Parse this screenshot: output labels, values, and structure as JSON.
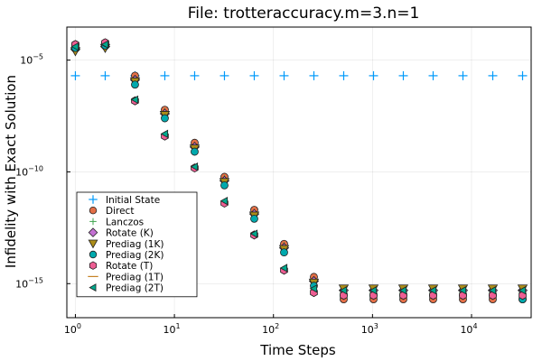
{
  "chart_data": {
    "type": "scatter",
    "title": "File: trotteraccuracy.m=3.n=1",
    "xlabel": "Time Steps",
    "ylabel": "Infidelity with Exact Solution",
    "xscale": "log10",
    "yscale": "log10",
    "xlim": [
      0.82,
      40000
    ],
    "ylim": [
      3e-17,
      0.0003
    ],
    "grid": true,
    "legend_position": "bottom-left",
    "x_ticks": [
      {
        "value": 1,
        "base": "10",
        "exp": "0"
      },
      {
        "value": 10,
        "base": "10",
        "exp": "1"
      },
      {
        "value": 100,
        "base": "10",
        "exp": "2"
      },
      {
        "value": 1000,
        "base": "10",
        "exp": "3"
      },
      {
        "value": 10000,
        "base": "10",
        "exp": "4"
      }
    ],
    "y_ticks": [
      {
        "value": 1e-15,
        "base": "10",
        "exp": "−15"
      },
      {
        "value": 1e-10,
        "base": "10",
        "exp": "−10"
      },
      {
        "value": 1e-05,
        "base": "10",
        "exp": "−5"
      }
    ],
    "x": [
      1,
      2,
      4,
      8,
      16,
      32,
      64,
      128,
      256,
      512,
      1024,
      2048,
      4096,
      8192,
      16384,
      32768
    ],
    "series": [
      {
        "name": "Initial State",
        "marker": "cross",
        "color": "#009AFA",
        "values": [
          2e-06,
          2e-06,
          2e-06,
          2e-06,
          2e-06,
          2e-06,
          2e-06,
          2e-06,
          2e-06,
          2e-06,
          2e-06,
          2e-06,
          2e-06,
          2e-06,
          2e-06,
          2e-06
        ]
      },
      {
        "name": "Direct",
        "marker": "circle",
        "color": "#E36F47",
        "values": [
          5e-05,
          6e-05,
          2e-06,
          6e-08,
          2e-09,
          6e-11,
          2e-12,
          6e-14,
          2e-15,
          2e-16,
          2e-16,
          2e-16,
          2e-16,
          2e-16,
          2e-16,
          2e-16
        ]
      },
      {
        "name": "Lanczos",
        "marker": "plus",
        "color": "#3EA44E",
        "values": [
          4e-05,
          5e-05,
          1.5e-06,
          5e-08,
          1.5e-09,
          5e-11,
          1.5e-12,
          5e-14,
          1.5e-15,
          4e-16,
          4e-16,
          4e-16,
          4e-16,
          4e-16,
          4e-16,
          4e-16
        ]
      },
      {
        "name": "Rotate (K)",
        "marker": "diamond",
        "color": "#C371D2",
        "values": [
          3e-05,
          4e-05,
          1.3e-06,
          4e-08,
          1.3e-09,
          4e-11,
          1.3e-12,
          4e-14,
          1.3e-15,
          5e-16,
          5e-16,
          5e-16,
          5e-16,
          5e-16,
          5e-16,
          5e-16
        ]
      },
      {
        "name": "Prediag (1K)",
        "marker": "triangle-down",
        "color": "#AC8D18",
        "values": [
          2.5e-05,
          3.5e-05,
          1.1e-06,
          3.5e-08,
          1.1e-09,
          3.5e-11,
          1.1e-12,
          3.5e-14,
          1.1e-15,
          6e-16,
          6e-16,
          6e-16,
          6e-16,
          6e-16,
          6e-16,
          6e-16
        ]
      },
      {
        "name": "Prediag (2K)",
        "marker": "circle",
        "color": "#00A9AD",
        "values": [
          3.5e-05,
          4.5e-05,
          8e-07,
          2.5e-08,
          8e-10,
          2.5e-11,
          8e-13,
          2.5e-14,
          8e-16,
          3e-16,
          3e-16,
          3e-16,
          3e-16,
          3e-16,
          3e-16,
          2e-16
        ]
      },
      {
        "name": "Rotate (T)",
        "marker": "hexagon",
        "color": "#ED5E93",
        "values": [
          5e-05,
          6e-05,
          1.5e-07,
          4e-09,
          1.5e-10,
          4e-12,
          1.5e-13,
          4e-15,
          4e-16,
          3e-16,
          3e-16,
          3e-16,
          3e-16,
          3e-16,
          3e-16,
          3e-16
        ]
      },
      {
        "name": "Prediag (1T)",
        "marker": "line",
        "color": "#C68125",
        "values": [
          4.5e-05,
          5.5e-05,
          1.6e-07,
          4.5e-09,
          1.6e-10,
          4.5e-12,
          1.6e-13,
          4.5e-15,
          5e-16,
          4e-16,
          4e-16,
          4e-16,
          4e-16,
          4e-16,
          4e-16,
          4e-16
        ]
      },
      {
        "name": "Prediag (2T)",
        "marker": "triangle-left",
        "color": "#00A98D",
        "values": [
          4e-05,
          5e-05,
          1.7e-07,
          5e-09,
          1.7e-10,
          5e-12,
          1.7e-13,
          5e-15,
          6e-16,
          5e-16,
          5e-16,
          5e-16,
          5e-16,
          5e-16,
          5e-16,
          5e-16
        ]
      }
    ]
  }
}
